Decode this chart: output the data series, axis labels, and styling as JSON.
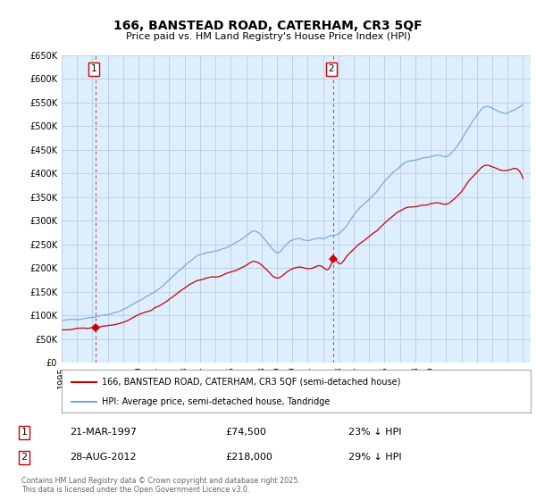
{
  "title": "166, BANSTEAD ROAD, CATERHAM, CR3 5QF",
  "subtitle": "Price paid vs. HM Land Registry's House Price Index (HPI)",
  "legend_property": "166, BANSTEAD ROAD, CATERHAM, CR3 5QF (semi-detached house)",
  "legend_hpi": "HPI: Average price, semi-detached house, Tandridge",
  "annotation1_date": "21-MAR-1997",
  "annotation1_price": "£74,500",
  "annotation1_pct": "23% ↓ HPI",
  "annotation2_date": "28-AUG-2012",
  "annotation2_price": "£218,000",
  "annotation2_pct": "29% ↓ HPI",
  "copyright": "Contains HM Land Registry data © Crown copyright and database right 2025.\nThis data is licensed under the Open Government Licence v3.0.",
  "ylim": [
    0,
    650000
  ],
  "yticks": [
    0,
    50000,
    100000,
    150000,
    200000,
    250000,
    300000,
    350000,
    400000,
    450000,
    500000,
    550000,
    600000,
    650000
  ],
  "color_property": "#cc0000",
  "color_hpi": "#7aaadd",
  "chart_bg": "#ddeeff",
  "background_color": "#ffffff",
  "grid_color": "#bbccdd",
  "purchase1_year": 1997.22,
  "purchase1_price": 74500,
  "purchase2_year": 2012.65,
  "purchase2_price": 218000,
  "vline1_year": 1997.22,
  "vline2_year": 2012.65,
  "xmin": 1995.0,
  "xmax": 2025.5
}
